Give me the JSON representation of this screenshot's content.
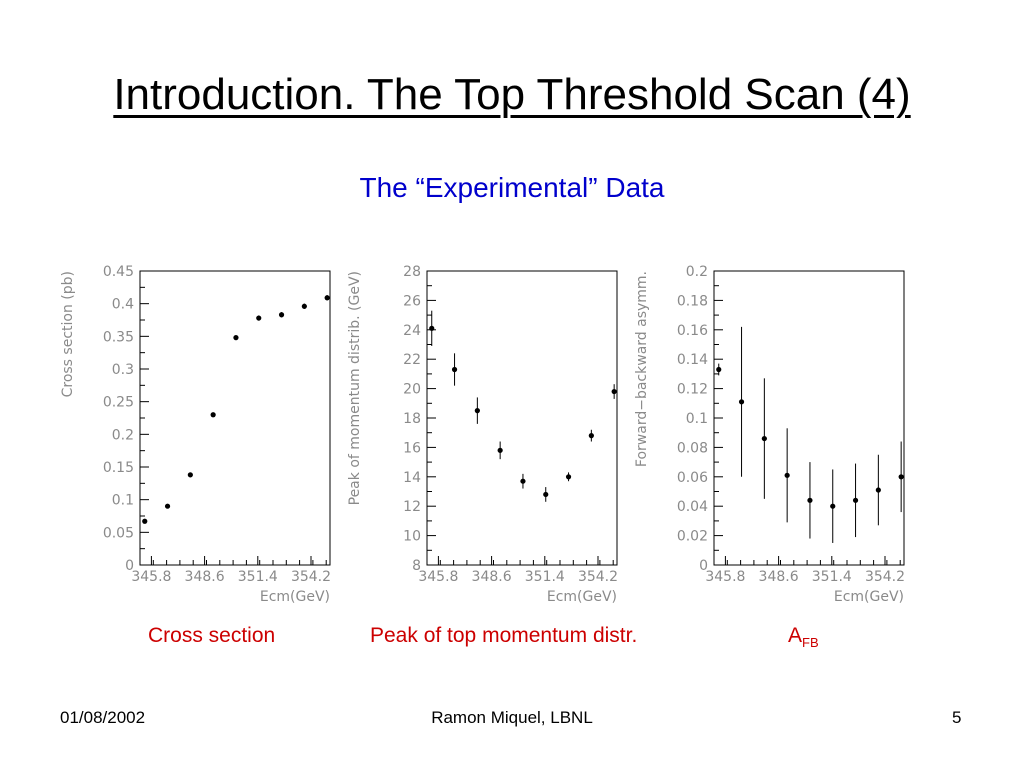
{
  "slide": {
    "title": "Introduction. The Top Threshold Scan (4)",
    "subtitle": "The “Experimental” Data",
    "captions": [
      "Cross section",
      "Peak of top momentum distr."
    ],
    "afb_caption": {
      "main": "A",
      "sub": "FB"
    },
    "footer": {
      "date": "01/08/2002",
      "author": "Ramon Miquel, LBNL",
      "page": "5"
    },
    "colors": {
      "title": "#000000",
      "subtitle": "#0000cc",
      "captions": "#cc0000",
      "axes": "#8a8a8a",
      "points": "#000000"
    }
  },
  "chart_data": [
    {
      "type": "scatter",
      "xlabel": "Ecm(GeV)",
      "ylabel": "Cross section (pb)",
      "xlim": [
        345.2,
        355.2
      ],
      "ylim": [
        0,
        0.45
      ],
      "xticks": [
        "345.8",
        "348.6",
        "351.4",
        "354.2"
      ],
      "yticks": [
        "0",
        "0.05",
        "0.1",
        "0.15",
        "0.2",
        "0.25",
        "0.3",
        "0.35",
        "0.4",
        "0.45"
      ],
      "x": [
        345.45,
        346.65,
        347.85,
        349.05,
        350.25,
        351.45,
        352.65,
        353.85,
        355.05
      ],
      "y": [
        0.067,
        0.09,
        0.138,
        0.23,
        0.348,
        0.378,
        0.383,
        0.396,
        0.409
      ],
      "err": [
        0.003,
        0.003,
        0.003,
        0.003,
        0.003,
        0.004,
        0.004,
        0.004,
        0.004
      ]
    },
    {
      "type": "scatter",
      "xlabel": "Ecm(GeV)",
      "ylabel": "Peak of momentum distrib. (GeV)",
      "xlim": [
        345.2,
        355.2
      ],
      "ylim": [
        8,
        28
      ],
      "xticks": [
        "345.8",
        "348.6",
        "351.4",
        "354.2"
      ],
      "yticks": [
        "8",
        "10",
        "12",
        "14",
        "16",
        "18",
        "20",
        "22",
        "24",
        "26",
        "28"
      ],
      "x": [
        345.45,
        346.65,
        347.85,
        349.05,
        350.25,
        351.45,
        352.65,
        353.85,
        355.05
      ],
      "y": [
        24.1,
        21.3,
        18.5,
        15.8,
        13.7,
        12.8,
        14.0,
        16.8,
        19.8
      ],
      "err": [
        1.2,
        1.1,
        0.9,
        0.6,
        0.5,
        0.5,
        0.3,
        0.4,
        0.5
      ]
    },
    {
      "type": "scatter",
      "xlabel": "Ecm(GeV)",
      "ylabel": "Forward−backward asymm.",
      "xlim": [
        345.2,
        355.2
      ],
      "ylim": [
        0,
        0.2
      ],
      "xticks": [
        "345.8",
        "348.6",
        "351.4",
        "354.2"
      ],
      "yticks": [
        "0",
        "0.02",
        "0.04",
        "0.06",
        "0.08",
        "0.1",
        "0.12",
        "0.14",
        "0.16",
        "0.18",
        "0.2"
      ],
      "x": [
        345.45,
        346.65,
        347.85,
        349.05,
        350.25,
        351.45,
        352.65,
        353.85,
        355.05
      ],
      "y": [
        0.133,
        0.111,
        0.086,
        0.061,
        0.044,
        0.04,
        0.044,
        0.051,
        0.06
      ],
      "err": [
        0.004,
        0.051,
        0.041,
        0.032,
        0.026,
        0.025,
        0.025,
        0.024,
        0.024
      ]
    }
  ]
}
